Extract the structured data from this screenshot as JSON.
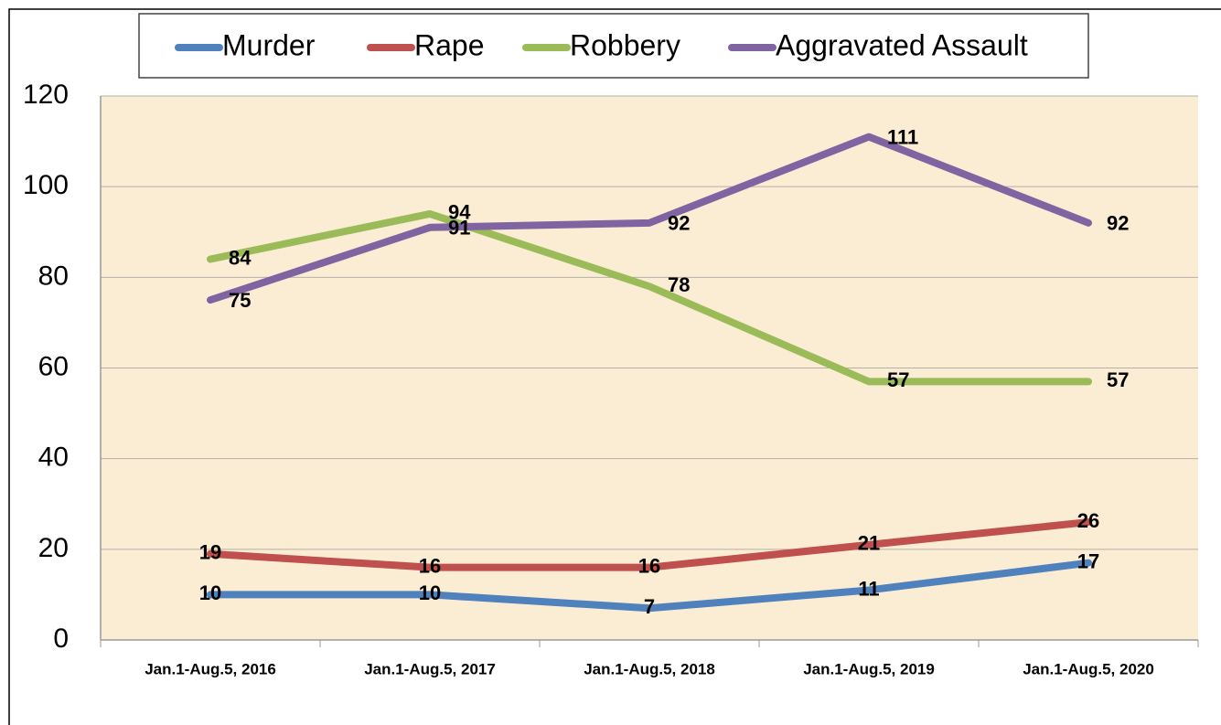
{
  "chart_data": {
    "type": "line",
    "categories": [
      "Jan.1-Aug.5, 2016",
      "Jan.1-Aug.5, 2017",
      "Jan.1-Aug.5, 2018",
      "Jan.1-Aug.5, 2019",
      "Jan.1-Aug.5, 2020"
    ],
    "series": [
      {
        "name": "Murder",
        "color": "#4f81bd",
        "values": [
          10,
          10,
          7,
          11,
          17
        ]
      },
      {
        "name": "Rape",
        "color": "#c0504d",
        "values": [
          19,
          16,
          16,
          21,
          26
        ]
      },
      {
        "name": "Robbery",
        "color": "#9bbb59",
        "values": [
          84,
          94,
          78,
          57,
          57
        ]
      },
      {
        "name": "Aggravated Assault",
        "color": "#8064a2",
        "values": [
          75,
          91,
          92,
          111,
          92
        ]
      }
    ],
    "ylim": [
      0,
      120
    ],
    "yticks": [
      0,
      20,
      40,
      60,
      80,
      100,
      120
    ],
    "grid": true,
    "legend": "top"
  }
}
